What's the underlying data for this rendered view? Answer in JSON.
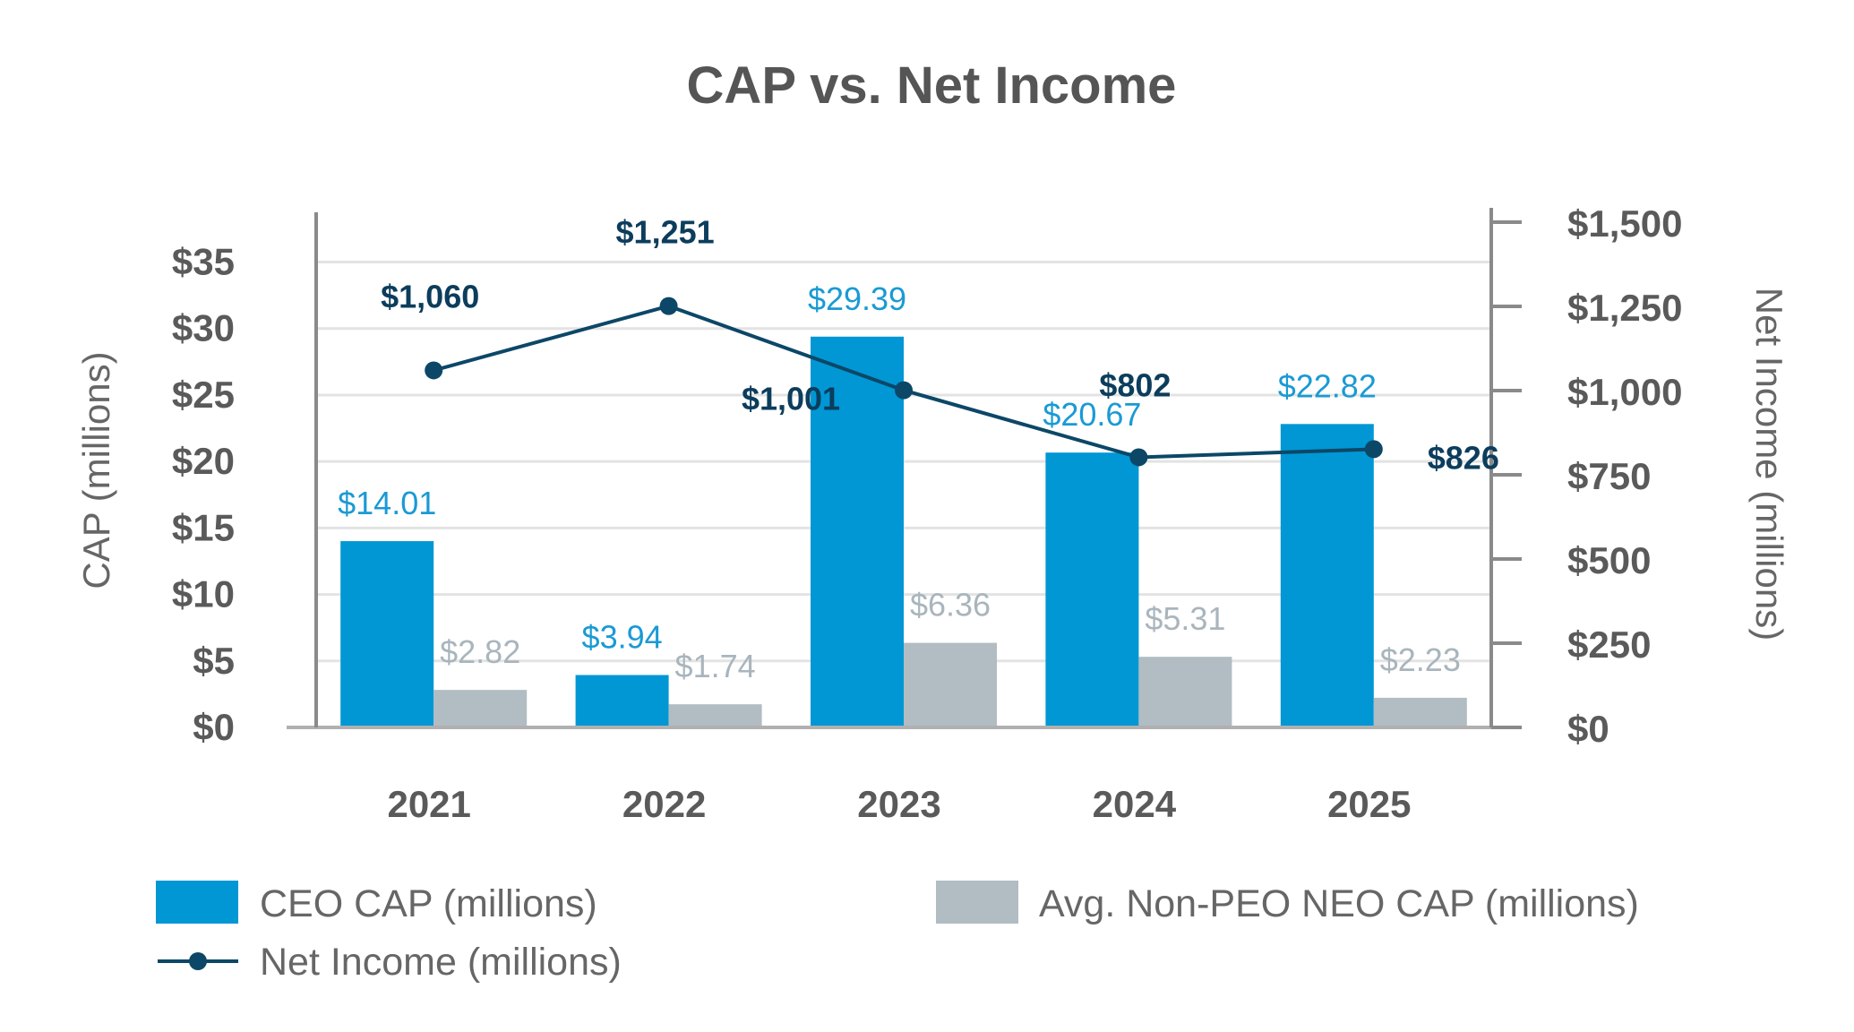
{
  "chart_data": {
    "type": "bar",
    "title": "CAP vs. Net Income",
    "categories": [
      "2021",
      "2022",
      "2023",
      "2024",
      "2025"
    ],
    "series": [
      {
        "name": "CEO CAP (millions)",
        "type": "bar",
        "axis": "left",
        "values": [
          14.01,
          3.94,
          29.39,
          20.67,
          22.82
        ],
        "labels": [
          "$14.01",
          "$3.94",
          "$29.39",
          "$20.67",
          "$22.82"
        ],
        "color": "#0097d4",
        "label_color": "#1a9ad4"
      },
      {
        "name": "Avg. Non-PEO NEO CAP (millions)",
        "type": "bar",
        "axis": "left",
        "values": [
          2.82,
          1.74,
          6.36,
          5.31,
          2.23
        ],
        "labels": [
          "$2.82",
          "$1.74",
          "$6.36",
          "$5.31",
          "$2.23"
        ],
        "color": "#b1bcc3",
        "label_color": "#a9b5bd"
      },
      {
        "name": "Net Income (millions)",
        "type": "line",
        "axis": "right",
        "values": [
          1060,
          1251,
          1001,
          802,
          826
        ],
        "labels": [
          "$1,060",
          "$1,251",
          "$1,001",
          "$802",
          "$826"
        ],
        "color": "#0c4767",
        "label_color": "#0c3d5c"
      }
    ],
    "y_left": {
      "label": "CAP (millions)",
      "range": [
        0,
        38
      ],
      "ticks": [
        0,
        5,
        10,
        15,
        20,
        25,
        30,
        35
      ],
      "tick_labels": [
        "$0",
        "$5",
        "$10",
        "$15",
        "$20",
        "$25",
        "$30",
        "$35"
      ]
    },
    "y_right": {
      "label": "Net Income (millions)",
      "range": [
        0,
        1500
      ],
      "ticks": [
        0,
        250,
        500,
        750,
        1000,
        1250,
        1500
      ],
      "tick_labels": [
        "$0",
        "$250",
        "$500",
        "$750",
        "$1,000",
        "$1,250",
        "$1,500"
      ]
    },
    "grid": true,
    "legend_position": "bottom"
  }
}
